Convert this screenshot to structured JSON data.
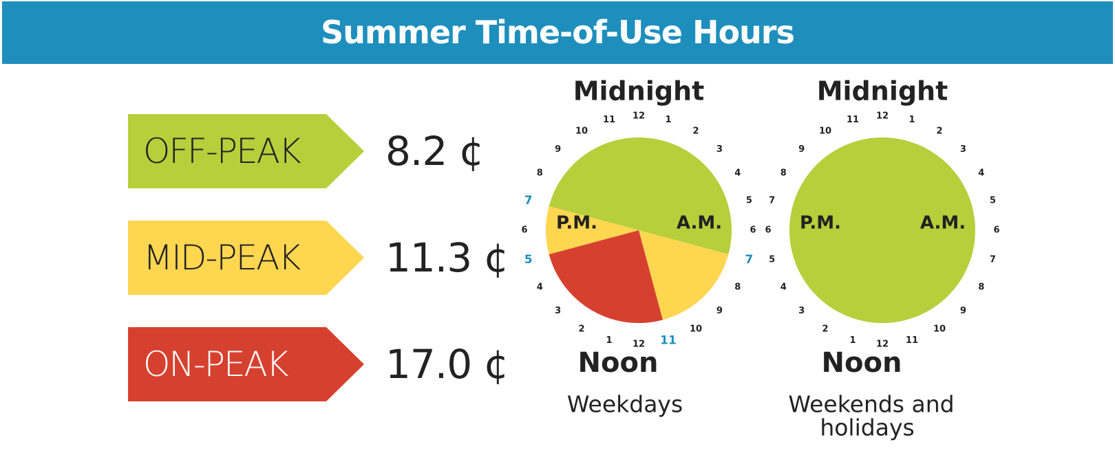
{
  "title": "Summer Time-of-Use Hours",
  "colors": {
    "header": "#1e8fbd",
    "off_peak": "#b6cf3b",
    "mid_peak": "#ffd650",
    "on_peak": "#d6412f",
    "highlight_hour": "#1e8fbd"
  },
  "rates": [
    {
      "label": "OFF-PEAK",
      "price": "8.2 ¢",
      "color": "#b6cf3b",
      "text_color": "#222222"
    },
    {
      "label": "MID-PEAK",
      "price": "11.3 ¢",
      "color": "#ffd650",
      "text_color": "#222222"
    },
    {
      "label": "ON-PEAK",
      "price": "17.0 ¢",
      "color": "#d6412f",
      "text_color": "#ffffff"
    }
  ],
  "chart_data": [
    {
      "type": "pie",
      "caption": "Weekdays",
      "top_label": "Midnight",
      "bottom_label": "Noon",
      "am_label": "A.M.",
      "pm_label": "P.M.",
      "hour_labels": [
        "12",
        "1",
        "2",
        "3",
        "4",
        "5",
        "6",
        "7",
        "8",
        "9",
        "10",
        "11",
        "12",
        "1",
        "2",
        "3",
        "4",
        "5",
        "6",
        "7",
        "8",
        "9",
        "10",
        "11"
      ],
      "highlighted_hours": [
        {
          "hour": 7,
          "period": "A.M."
        },
        {
          "hour": 11,
          "period": "A.M."
        },
        {
          "hour": 5,
          "period": "P.M."
        },
        {
          "hour": 7,
          "period": "P.M."
        }
      ],
      "segments": [
        {
          "period": "Off-peak",
          "start": "7 P.M.",
          "end": "7 A.M.",
          "hours": 12
        },
        {
          "period": "Mid-peak",
          "start": "7 A.M.",
          "end": "11 A.M.",
          "hours": 4
        },
        {
          "period": "On-peak",
          "start": "11 A.M.",
          "end": "5 P.M.",
          "hours": 6
        },
        {
          "period": "Mid-peak",
          "start": "5 P.M.",
          "end": "7 P.M.",
          "hours": 2
        }
      ]
    },
    {
      "type": "pie",
      "caption": "Weekends and holidays",
      "top_label": "Midnight",
      "bottom_label": "Noon",
      "am_label": "A.M.",
      "pm_label": "P.M.",
      "hour_labels": [
        "12",
        "1",
        "2",
        "3",
        "4",
        "5",
        "6",
        "7",
        "8",
        "9",
        "10",
        "11",
        "12",
        "1",
        "2",
        "3",
        "4",
        "5",
        "6",
        "7",
        "8",
        "9",
        "10",
        "11"
      ],
      "highlighted_hours": [],
      "segments": [
        {
          "period": "Off-peak",
          "start": "12 A.M.",
          "end": "12 A.M.",
          "hours": 24
        }
      ]
    }
  ]
}
